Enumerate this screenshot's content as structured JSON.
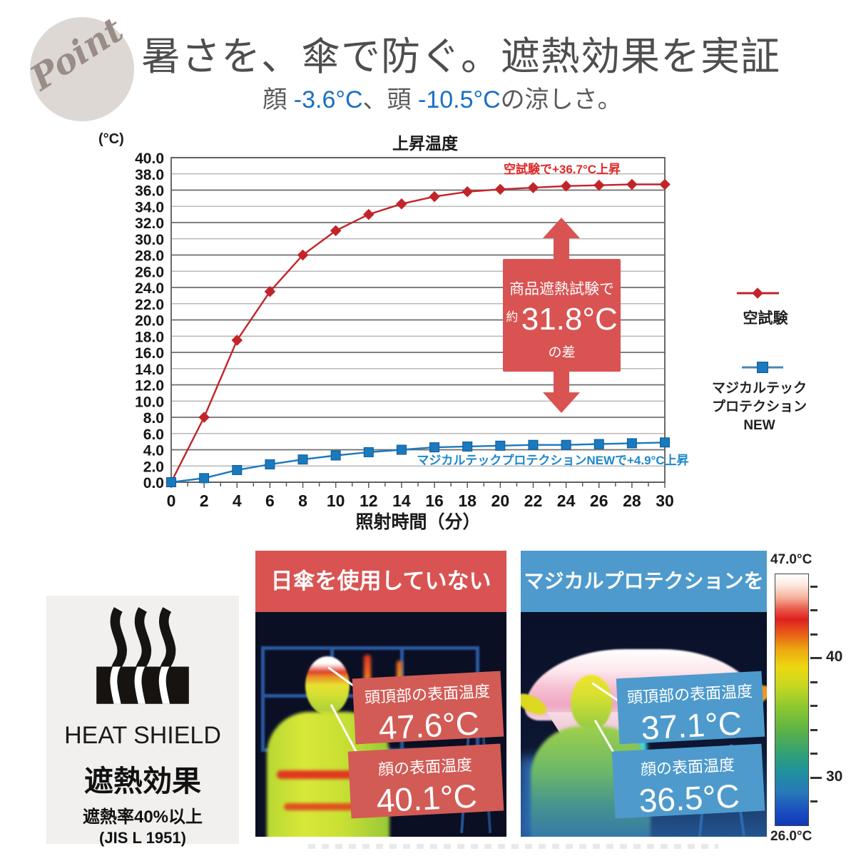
{
  "point_badge": {
    "label": "Point"
  },
  "header": {
    "title": "暑さを、傘で防ぐ。遮熱効果を実証",
    "subtitle_prefix": "顔 ",
    "subtitle_face_delta": "-3.6°C",
    "subtitle_mid": "、頭 ",
    "subtitle_head_delta": "-10.5°C",
    "subtitle_suffix": "の涼しさ。"
  },
  "chart_data": {
    "type": "line",
    "title": "上昇温度",
    "y_unit_label": "(°C)",
    "xlabel": "照射時間（分）",
    "x": [
      0,
      2,
      4,
      6,
      8,
      10,
      12,
      14,
      16,
      18,
      20,
      22,
      24,
      26,
      28,
      30
    ],
    "xlim": [
      0,
      30
    ],
    "ylim": [
      0,
      40
    ],
    "ytick_step": 2,
    "xtick_step": 2,
    "grid": true,
    "legend_position": "right",
    "series": [
      {
        "name": "空試験",
        "color": "#c2242a",
        "marker": "diamond",
        "values": [
          0,
          8.0,
          17.5,
          23.5,
          28.0,
          31.0,
          33.0,
          34.3,
          35.2,
          35.8,
          36.1,
          36.3,
          36.5,
          36.6,
          36.7,
          36.7
        ],
        "annotation": "空試験で+36.7°C上昇"
      },
      {
        "name": "マジカルテックプロテクションNEW",
        "color": "#1b79be",
        "marker": "square",
        "values": [
          0,
          0.5,
          1.5,
          2.2,
          2.8,
          3.3,
          3.7,
          4.0,
          4.3,
          4.4,
          4.5,
          4.6,
          4.6,
          4.7,
          4.8,
          4.9
        ],
        "annotation": "マジカルテックプロテクションNEWで+4.9°C上昇"
      }
    ],
    "legend": [
      {
        "label": "空試験"
      },
      {
        "lines": [
          "マジカルテック",
          "プロテクション",
          "NEW"
        ]
      }
    ],
    "diff_callout": {
      "line1": "商品遮熱試験で",
      "approx": "約",
      "value": "31.8°C",
      "line2": "の差"
    }
  },
  "heat_shield": {
    "title": "HEAT SHIELD",
    "effect": "遮熱効果",
    "rate": "遮熱率40%以上",
    "standard": "(JIS L 1951)"
  },
  "thermal": {
    "left": {
      "header": "日傘を使用していない",
      "labels": [
        {
          "title": "頭頂部の表面温度",
          "value": "47.6°C"
        },
        {
          "title": "顔の表面温度",
          "value": "40.1°C"
        }
      ]
    },
    "right": {
      "header": "マジカルプロテクションを使用",
      "labels": [
        {
          "title": "頭頂部の表面温度",
          "value": "37.1°C"
        },
        {
          "title": "顔の表面温度",
          "value": "36.5°C"
        }
      ]
    },
    "scale": {
      "top_label": "47.0°C",
      "bottom_label": "26.0°C",
      "min": 26,
      "max": 47,
      "tick_labels": [
        40,
        30
      ]
    }
  },
  "colors": {
    "red_accent": "#d95353",
    "blue_accent": "#4e9acd",
    "subtitle_accent": "#1b6fc4"
  }
}
